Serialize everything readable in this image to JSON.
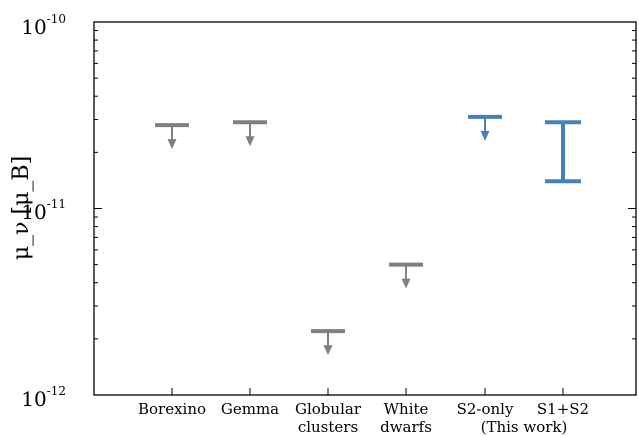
{
  "chart_data": {
    "type": "limit-plot",
    "title": "",
    "ylabel": "μ_ν [μ_B]",
    "yscale": "log",
    "ylim": [
      1e-12,
      1e-10
    ],
    "yticks": [
      {
        "value": 1e-10,
        "base": "10",
        "exp": "-10"
      },
      {
        "value": 1e-11,
        "base": "10",
        "exp": "-11"
      },
      {
        "value": 1e-12,
        "base": "10",
        "exp": "-12"
      }
    ],
    "categories": [
      [
        "Borexino"
      ],
      [
        "Gemma"
      ],
      [
        "Globular",
        "clusters"
      ],
      [
        "White",
        "dwarfs"
      ],
      [
        "S2-only",
        "(This work)"
      ],
      [
        "S1+S2"
      ]
    ],
    "upper_limits": [
      {
        "category": 0,
        "value": 2.8e-11,
        "color": "#808080"
      },
      {
        "category": 1,
        "value": 2.9e-11,
        "color": "#808080"
      },
      {
        "category": 2,
        "value": 2.2e-12,
        "color": "#808080"
      },
      {
        "category": 3,
        "value": 5e-12,
        "color": "#808080"
      },
      {
        "category": 4,
        "value": 3.1e-11,
        "color": "#4682b4"
      }
    ],
    "intervals": [
      {
        "category": 5,
        "low": 1.4e-11,
        "high": 2.9e-11,
        "color": "#4682b4"
      }
    ],
    "colors": {
      "existing_limits": "#808080",
      "this_work": "#4682b4"
    },
    "grid": false,
    "legend": "none"
  }
}
